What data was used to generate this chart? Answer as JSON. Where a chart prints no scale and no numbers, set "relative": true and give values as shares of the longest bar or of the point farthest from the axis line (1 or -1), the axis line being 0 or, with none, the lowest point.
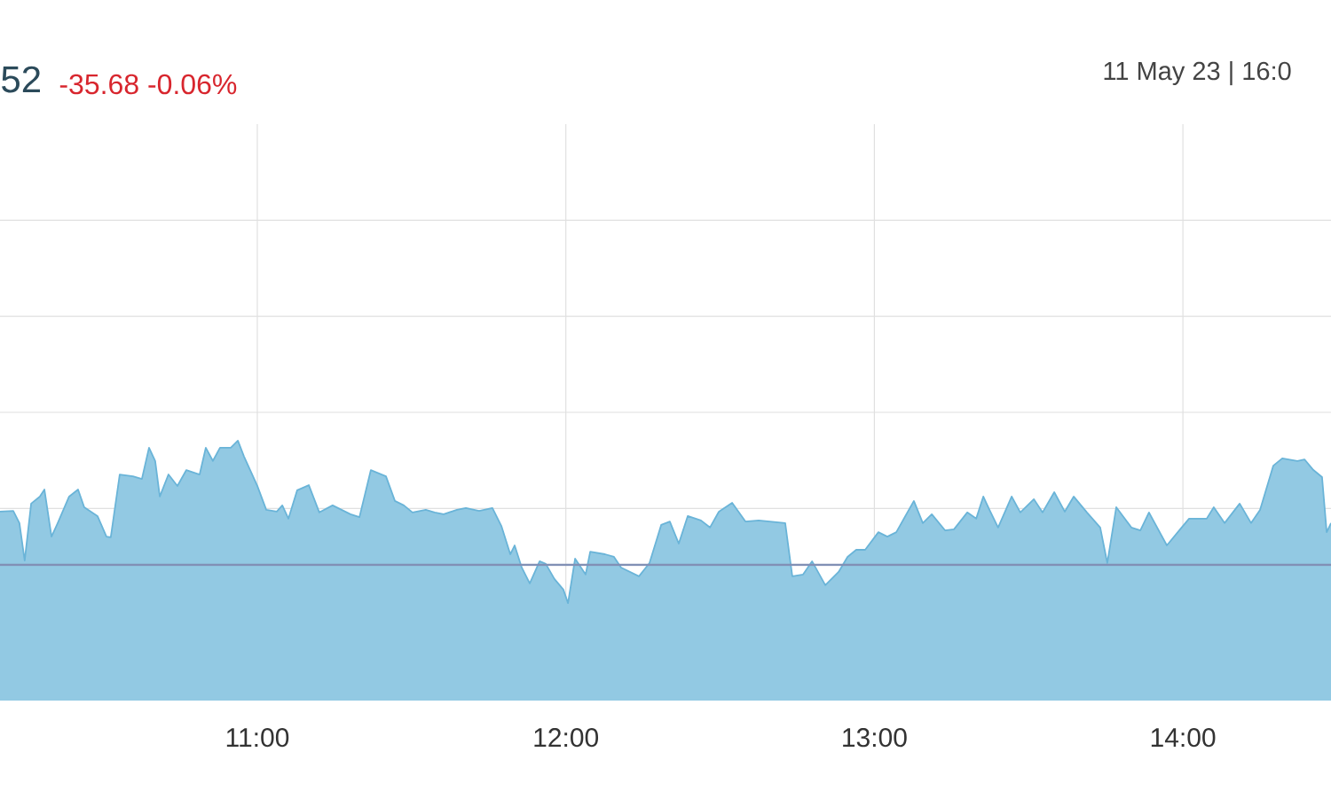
{
  "chart_data": {
    "type": "area",
    "relative": true,
    "annotations": [
      "52",
      "-35.68 -0.06%",
      "11 May 23 | 16:0"
    ],
    "xlim": [
      10.166,
      14.48
    ],
    "xticks": [
      {
        "value": 11,
        "label": "11:00"
      },
      {
        "value": 12,
        "label": "12:00"
      },
      {
        "value": 13,
        "label": "13:00"
      },
      {
        "value": 14,
        "label": "14:00"
      }
    ],
    "grid": true,
    "ref_lines": [
      {
        "axis": "y",
        "value": 0.522,
        "color": "#8190b5"
      }
    ],
    "series": [
      {
        "color": "#6ab4d8",
        "x": [
          10.166,
          10.209,
          10.229,
          10.246,
          10.267,
          10.295,
          10.31,
          10.333,
          10.353,
          10.39,
          10.419,
          10.439,
          10.482,
          10.511,
          10.525,
          10.554,
          10.597,
          10.626,
          10.649,
          10.669,
          10.684,
          10.712,
          10.741,
          10.77,
          10.813,
          10.833,
          10.856,
          10.879,
          10.914,
          10.937,
          10.957,
          11.0,
          11.029,
          11.063,
          11.081,
          11.101,
          11.129,
          11.167,
          11.201,
          11.244,
          11.302,
          11.331,
          11.368,
          11.417,
          11.446,
          11.475,
          11.503,
          11.546,
          11.575,
          11.604,
          11.647,
          11.676,
          11.719,
          11.762,
          11.791,
          11.82,
          11.834,
          11.857,
          11.883,
          11.915,
          11.935,
          11.963,
          11.992,
          12.007,
          12.03,
          12.064,
          12.079,
          12.127,
          12.156,
          12.179,
          12.237,
          12.271,
          12.309,
          12.337,
          12.366,
          12.395,
          12.438,
          12.467,
          12.496,
          12.539,
          12.582,
          12.625,
          12.711,
          12.734,
          12.769,
          12.798,
          12.841,
          12.884,
          12.913,
          12.941,
          12.97,
          13.013,
          13.042,
          13.071,
          13.128,
          13.157,
          13.186,
          13.229,
          13.258,
          13.301,
          13.33,
          13.353,
          13.373,
          13.401,
          13.445,
          13.473,
          13.517,
          13.545,
          13.583,
          13.617,
          13.646,
          13.689,
          13.732,
          13.755,
          13.784,
          13.833,
          13.862,
          13.89,
          13.948,
          13.991,
          14.02,
          14.077,
          14.1,
          14.135,
          14.184,
          14.221,
          14.25,
          14.293,
          14.322,
          14.371,
          14.394,
          14.423,
          14.451,
          14.466,
          14.48
        ],
        "values": [
          0.727,
          0.73,
          0.683,
          0.539,
          0.758,
          0.785,
          0.812,
          0.631,
          0.683,
          0.785,
          0.812,
          0.744,
          0.71,
          0.631,
          0.628,
          0.87,
          0.863,
          0.853,
          0.973,
          0.922,
          0.785,
          0.87,
          0.826,
          0.887,
          0.87,
          0.973,
          0.922,
          0.973,
          0.973,
          1.0,
          0.939,
          0.826,
          0.734,
          0.727,
          0.751,
          0.7,
          0.809,
          0.829,
          0.724,
          0.751,
          0.717,
          0.706,
          0.887,
          0.863,
          0.768,
          0.751,
          0.724,
          0.734,
          0.724,
          0.717,
          0.734,
          0.741,
          0.73,
          0.741,
          0.672,
          0.563,
          0.597,
          0.512,
          0.451,
          0.536,
          0.526,
          0.468,
          0.427,
          0.375,
          0.546,
          0.485,
          0.573,
          0.563,
          0.553,
          0.512,
          0.478,
          0.529,
          0.676,
          0.689,
          0.604,
          0.71,
          0.693,
          0.666,
          0.727,
          0.761,
          0.689,
          0.693,
          0.683,
          0.478,
          0.485,
          0.536,
          0.444,
          0.495,
          0.553,
          0.58,
          0.58,
          0.648,
          0.631,
          0.648,
          0.768,
          0.683,
          0.717,
          0.655,
          0.659,
          0.724,
          0.7,
          0.785,
          0.734,
          0.666,
          0.785,
          0.724,
          0.775,
          0.724,
          0.802,
          0.727,
          0.785,
          0.724,
          0.666,
          0.529,
          0.744,
          0.666,
          0.655,
          0.724,
          0.597,
          0.659,
          0.7,
          0.7,
          0.744,
          0.683,
          0.758,
          0.683,
          0.734,
          0.904,
          0.932,
          0.922,
          0.928,
          0.887,
          0.86,
          0.648,
          0.683
        ]
      }
    ]
  }
}
